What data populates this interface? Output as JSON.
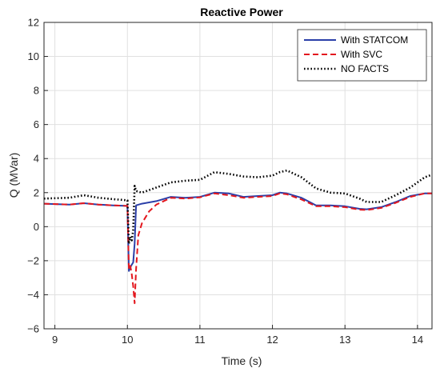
{
  "chart_data": {
    "type": "line",
    "title": "Reactive Power",
    "xlabel": "Time (s)",
    "ylabel": "Q (MVar)",
    "xlim": [
      8.85,
      14.2
    ],
    "ylim": [
      -6,
      12
    ],
    "xticks": [
      9,
      10,
      11,
      12,
      13,
      14
    ],
    "yticks": [
      -6,
      -4,
      -2,
      0,
      2,
      4,
      6,
      8,
      10,
      12
    ],
    "grid": true,
    "legend_position": "top-right",
    "series": [
      {
        "name": "With STATCOM",
        "color": "#2b3fa8",
        "style": "solid",
        "x": [
          8.85,
          9.2,
          9.4,
          9.6,
          9.8,
          10.0,
          10.02,
          10.05,
          10.08,
          10.1,
          10.12,
          10.2,
          10.4,
          10.6,
          10.8,
          11.0,
          11.2,
          11.4,
          11.6,
          11.8,
          12.0,
          12.1,
          12.2,
          12.4,
          12.6,
          12.8,
          13.0,
          13.2,
          13.3,
          13.5,
          13.7,
          13.9,
          14.1,
          14.2
        ],
        "y": [
          1.35,
          1.3,
          1.38,
          1.3,
          1.25,
          1.22,
          -2.6,
          -2.3,
          -2.1,
          -1.0,
          1.25,
          1.35,
          1.5,
          1.75,
          1.7,
          1.75,
          2.0,
          1.95,
          1.75,
          1.8,
          1.85,
          2.0,
          1.95,
          1.7,
          1.25,
          1.25,
          1.2,
          1.05,
          1.02,
          1.15,
          1.45,
          1.8,
          1.95,
          1.95
        ]
      },
      {
        "name": "With SVC",
        "color": "#e3171e",
        "style": "dashed",
        "x": [
          8.85,
          9.2,
          9.4,
          9.6,
          9.8,
          10.0,
          10.02,
          10.04,
          10.06,
          10.08,
          10.1,
          10.12,
          10.15,
          10.2,
          10.3,
          10.4,
          10.6,
          10.8,
          11.0,
          11.2,
          11.4,
          11.6,
          11.8,
          12.0,
          12.1,
          12.2,
          12.4,
          12.6,
          12.8,
          13.0,
          13.2,
          13.3,
          13.5,
          13.7,
          13.9,
          14.1,
          14.2
        ],
        "y": [
          1.35,
          1.3,
          1.38,
          1.3,
          1.25,
          1.22,
          -2.5,
          -2.3,
          -2.8,
          -3.5,
          -4.5,
          -2.5,
          -0.5,
          0.2,
          0.9,
          1.3,
          1.7,
          1.65,
          1.72,
          1.95,
          1.85,
          1.7,
          1.75,
          1.8,
          1.95,
          1.9,
          1.6,
          1.2,
          1.2,
          1.15,
          1.0,
          0.98,
          1.1,
          1.4,
          1.75,
          1.95,
          1.95
        ]
      },
      {
        "name": "NO FACTS",
        "color": "#000000",
        "style": "dotted",
        "x": [
          8.85,
          9.2,
          9.4,
          9.6,
          9.8,
          10.0,
          10.02,
          10.04,
          10.06,
          10.08,
          10.1,
          10.12,
          10.2,
          10.4,
          10.6,
          10.8,
          11.0,
          11.2,
          11.4,
          11.6,
          11.8,
          12.0,
          12.1,
          12.2,
          12.4,
          12.6,
          12.8,
          13.0,
          13.2,
          13.3,
          13.5,
          13.7,
          13.9,
          14.1,
          14.2
        ],
        "y": [
          1.65,
          1.7,
          1.85,
          1.7,
          1.62,
          1.55,
          -1.0,
          -0.6,
          -0.8,
          -0.2,
          2.4,
          2.1,
          2.0,
          2.3,
          2.6,
          2.7,
          2.75,
          3.2,
          3.1,
          2.95,
          2.9,
          3.0,
          3.2,
          3.3,
          2.9,
          2.25,
          2.0,
          1.95,
          1.65,
          1.45,
          1.45,
          1.85,
          2.3,
          2.9,
          3.05
        ]
      }
    ]
  }
}
